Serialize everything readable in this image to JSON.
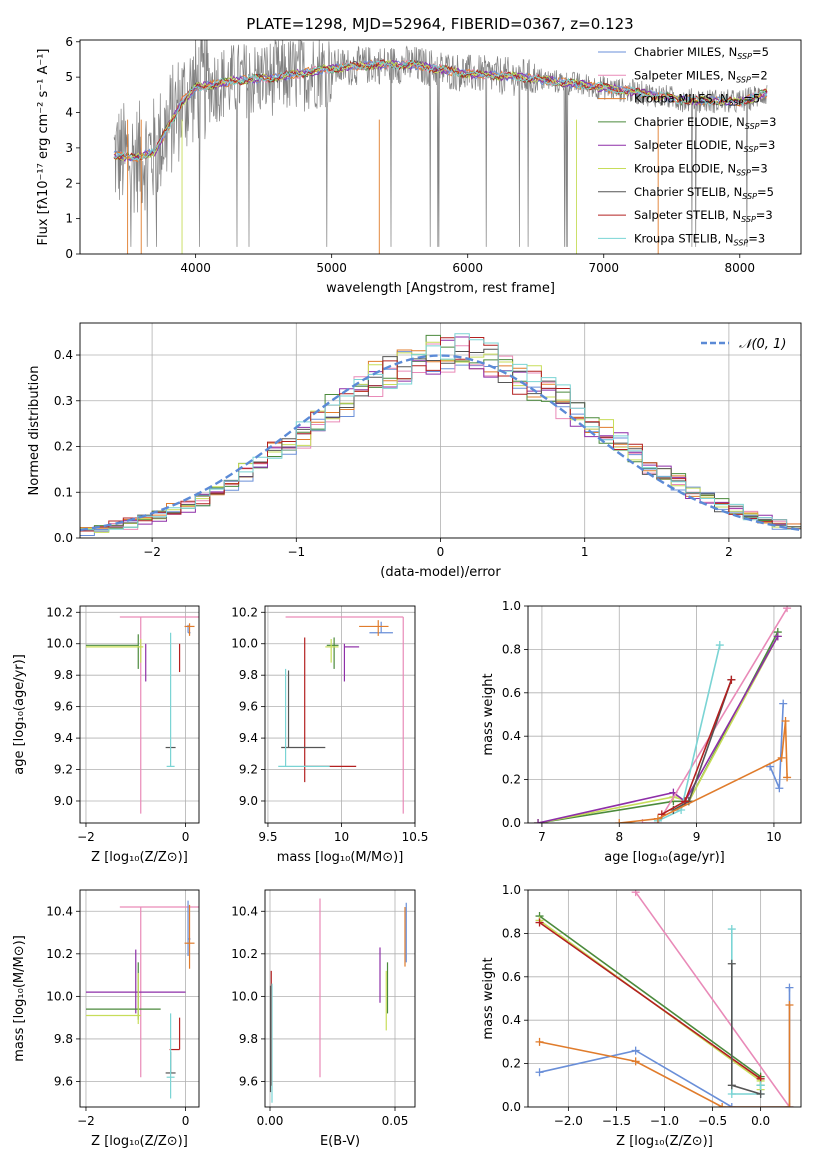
{
  "figure_title": "PLATE=1298, MJD=52964, FIBERID=0367, z=0.123",
  "colors": {
    "chabrier_miles": "#6a8fd8",
    "salpeter_miles": "#e98ab8",
    "kroupa_miles": "#e07c2c",
    "chabrier_elodie": "#4b8a3c",
    "salpeter_elodie": "#8e2fa8",
    "kroupa_elodie": "#c7dd5a",
    "chabrier_stelib": "#555555",
    "salpeter_stelib": "#b32020",
    "kroupa_stelib": "#7ad4d4",
    "normal_curve": "#5b8ad6"
  },
  "chart_data": [
    {
      "id": "spectrum",
      "type": "line",
      "title": "PLATE=1298, MJD=52964, FIBERID=0367, z=0.123",
      "xlabel": "wavelength [Angstrom, rest frame]",
      "ylabel": "Flux [fλ10⁻¹⁷ erg cm⁻² s⁻¹ A⁻¹]",
      "xlim": [
        3150,
        8450
      ],
      "ylim": [
        0,
        6.05
      ],
      "xticks": [
        4000,
        5000,
        6000,
        7000,
        8000
      ],
      "yticks": [
        0,
        1,
        2,
        3,
        4,
        5,
        6
      ],
      "legend_position": "right",
      "legend": [
        "Chabrier MILES, Nₛₛₚ=5",
        "Salpeter MILES, Nₛₛₚ=2",
        "Kroupa MILES, Nₛₛₚ=5",
        "Chabrier ELODIE, Nₛₛₚ=3",
        "Salpeter ELODIE, Nₛₛₚ=3",
        "Kroupa ELODIE, Nₛₛₚ=3",
        "Chabrier STELIB, Nₛₛₚ=5",
        "Salpeter STELIB, Nₛₛₚ=3",
        "Kroupa STELIB, Nₛₛₚ=3"
      ],
      "continuum": {
        "x": [
          3400,
          3550,
          3700,
          3800,
          3900,
          4000,
          4300,
          4600,
          5000,
          5300,
          5600,
          6000,
          6400,
          6800,
          7200,
          7600,
          8000,
          8200
        ],
        "y": [
          2.8,
          2.7,
          2.9,
          3.6,
          4.3,
          4.7,
          4.9,
          5.0,
          5.25,
          5.35,
          5.35,
          5.1,
          5.0,
          4.8,
          4.6,
          4.35,
          4.3,
          4.55
        ]
      }
    },
    {
      "id": "residuals",
      "type": "histogram",
      "xlabel": "(data-model)/error",
      "ylabel": "Normed distribution",
      "xlim": [
        -2.5,
        2.5
      ],
      "ylim": [
        0,
        0.47
      ],
      "xticks": [
        -2,
        -1,
        0,
        1,
        2
      ],
      "yticks": [
        0.0,
        0.1,
        0.2,
        0.3,
        0.4
      ],
      "legend_position": "upper right",
      "legend": [
        "𝒩(0, 1)"
      ],
      "bin_width": 0.1,
      "normal": {
        "mean": 0,
        "sigma": 1
      }
    },
    {
      "id": "age_vs_Z",
      "type": "errorbar",
      "xlabel": "Z [log₁₀(Z/Z⊙)]",
      "ylabel": "age  [log₁₀(age/yr)]",
      "xlim": [
        -2.12,
        0.27
      ],
      "ylim": [
        8.86,
        10.24
      ],
      "xticks": [
        -2,
        0
      ],
      "yticks": [
        9.0,
        9.2,
        9.4,
        9.6,
        9.8,
        10.0,
        10.2
      ],
      "points": [
        {
          "model": "salpeter_miles",
          "x": -0.9,
          "xerr": [
            0.42,
            1.2
          ],
          "y": 10.17,
          "yerr": [
            1.25,
            0.0
          ]
        },
        {
          "model": "chabrier_miles",
          "x": 0.05,
          "xerr": [
            0.0,
            0.05
          ],
          "y": 10.07,
          "yerr": [
            0.0,
            0.05
          ]
        },
        {
          "model": "kroupa_miles",
          "x": 0.08,
          "xerr": [
            0.1,
            0.1
          ],
          "y": 10.11,
          "yerr": [
            0.06,
            0.02
          ]
        },
        {
          "model": "chabrier_elodie",
          "x": -0.95,
          "xerr": [
            1.05,
            0.0
          ],
          "y": 9.99,
          "yerr": [
            0.15,
            0.07
          ]
        },
        {
          "model": "kroupa_elodie",
          "x": -0.9,
          "xerr": [
            1.1,
            0.05
          ],
          "y": 9.98,
          "yerr": [
            0.1,
            0.05
          ]
        },
        {
          "model": "salpeter_elodie",
          "x": -0.8,
          "xerr": [
            0.0,
            0.0
          ],
          "y": 9.98,
          "yerr": [
            0.22,
            0.02
          ]
        },
        {
          "model": "salpeter_stelib",
          "x": -0.12,
          "xerr": [
            0.0,
            0.0
          ],
          "y": 9.97,
          "yerr": [
            0.15,
            0.03
          ]
        },
        {
          "model": "chabrier_stelib",
          "x": -0.3,
          "xerr": [
            0.1,
            0.1
          ],
          "y": 9.34,
          "yerr": [
            0.0,
            0.0
          ]
        },
        {
          "model": "kroupa_stelib",
          "x": -0.3,
          "xerr": [
            0.08,
            0.08
          ],
          "y": 9.22,
          "yerr": [
            0.0,
            0.85
          ]
        }
      ]
    },
    {
      "id": "age_vs_mass",
      "type": "errorbar",
      "xlabel": "mass [log₁₀(M/M⊙)]",
      "ylabel": "",
      "xlim": [
        9.48,
        10.5
      ],
      "ylim": [
        8.86,
        10.24
      ],
      "xticks": [
        9.5,
        10.0,
        10.5
      ],
      "yticks": [
        9.0,
        9.2,
        9.4,
        9.6,
        9.8,
        10.0,
        10.2
      ],
      "points": [
        {
          "model": "salpeter_miles",
          "x": 10.42,
          "xerr": [
            0.8,
            0.0
          ],
          "y": 10.17,
          "yerr": [
            1.25,
            0.0
          ]
        },
        {
          "model": "chabrier_miles",
          "x": 10.27,
          "xerr": [
            0.08,
            0.08
          ],
          "y": 10.07,
          "yerr": [
            0.0,
            0.07
          ]
        },
        {
          "model": "kroupa_miles",
          "x": 10.25,
          "xerr": [
            0.13,
            0.07
          ],
          "y": 10.11,
          "yerr": [
            0.06,
            0.04
          ]
        },
        {
          "model": "chabrier_elodie",
          "x": 9.95,
          "xerr": [
            0.05,
            0.03
          ],
          "y": 9.99,
          "yerr": [
            0.15,
            0.05
          ]
        },
        {
          "model": "kroupa_elodie",
          "x": 9.93,
          "xerr": [
            0.04,
            0.05
          ],
          "y": 9.98,
          "yerr": [
            0.1,
            0.05
          ]
        },
        {
          "model": "salpeter_elodie",
          "x": 10.02,
          "xerr": [
            0.0,
            0.1
          ],
          "y": 9.98,
          "yerr": [
            0.22,
            0.02
          ]
        },
        {
          "model": "salpeter_stelib",
          "x": 9.75,
          "xerr": [
            0.0,
            0.35
          ],
          "y": 9.22,
          "yerr": [
            0.1,
            0.82
          ]
        },
        {
          "model": "chabrier_stelib",
          "x": 9.64,
          "xerr": [
            0.05,
            0.25
          ],
          "y": 9.34,
          "yerr": [
            0.0,
            0.49
          ]
        },
        {
          "model": "kroupa_stelib",
          "x": 9.62,
          "xerr": [
            0.05,
            0.3
          ],
          "y": 9.22,
          "yerr": [
            0.0,
            0.62
          ]
        }
      ]
    },
    {
      "id": "mass_weight_vs_age",
      "type": "line",
      "xlabel": "age  [log₁₀(age/yr)]",
      "ylabel": "mass weight",
      "xlim": [
        6.82,
        10.35
      ],
      "ylim": [
        0,
        1.0
      ],
      "xticks": [
        7,
        8,
        9,
        10
      ],
      "yticks": [
        0.0,
        0.2,
        0.4,
        0.6,
        0.8,
        1.0
      ],
      "series": [
        {
          "model": "chabrier_elodie",
          "x": [
            6.95,
            8.7,
            8.9,
            10.05
          ],
          "y": [
            0.0,
            0.1,
            0.1,
            0.88
          ]
        },
        {
          "model": "kroupa_elodie",
          "x": [
            6.95,
            8.7,
            8.9,
            10.05
          ],
          "y": [
            0.0,
            0.12,
            0.1,
            0.86
          ]
        },
        {
          "model": "salpeter_elodie",
          "x": [
            6.95,
            8.7,
            8.85,
            10.05
          ],
          "y": [
            0.0,
            0.14,
            0.1,
            0.86
          ]
        },
        {
          "model": "salpeter_miles",
          "x": [
            8.3,
            8.5,
            10.17
          ],
          "y": [
            0.0,
            0.0,
            0.99
          ]
        },
        {
          "model": "kroupa_stelib",
          "x": [
            8.5,
            8.8,
            9.3
          ],
          "y": [
            0.01,
            0.06,
            0.82
          ]
        },
        {
          "model": "chabrier_stelib",
          "x": [
            8.7,
            8.9,
            9.45
          ],
          "y": [
            0.06,
            0.1,
            0.66
          ]
        },
        {
          "model": "salpeter_stelib",
          "x": [
            8.55,
            8.85,
            9.45
          ],
          "y": [
            0.04,
            0.1,
            0.66
          ]
        },
        {
          "model": "chabrier_miles",
          "x": [
            9.95,
            10.07,
            10.12
          ],
          "y": [
            0.26,
            0.16,
            0.55
          ]
        },
        {
          "model": "kroupa_miles",
          "x": [
            8.0,
            8.5,
            10.1,
            10.15,
            10.17
          ],
          "y": [
            0.0,
            0.02,
            0.3,
            0.47,
            0.21
          ]
        }
      ]
    },
    {
      "id": "mass_vs_Z",
      "type": "errorbar",
      "xlabel": "Z [log₁₀(Z/Z⊙)]",
      "ylabel": "mass [log₁₀(M/M⊙)]",
      "xlim": [
        -2.12,
        0.27
      ],
      "ylim": [
        9.48,
        10.5
      ],
      "xticks": [
        -2,
        0
      ],
      "yticks": [
        9.6,
        9.8,
        10.0,
        10.2,
        10.4
      ],
      "points": [
        {
          "model": "salpeter_miles",
          "x": -0.9,
          "xerr": [
            0.42,
            1.2
          ],
          "y": 10.42,
          "yerr": [
            0.8,
            0.0
          ]
        },
        {
          "model": "chabrier_miles",
          "x": 0.05,
          "xerr": [
            0.0,
            0.05
          ],
          "y": 10.27,
          "yerr": [
            0.08,
            0.18
          ]
        },
        {
          "model": "kroupa_miles",
          "x": 0.08,
          "xerr": [
            0.1,
            0.1
          ],
          "y": 10.25,
          "yerr": [
            0.12,
            0.18
          ]
        },
        {
          "model": "salpeter_elodie",
          "x": -1.0,
          "xerr": [
            1.0,
            1.0
          ],
          "y": 10.02,
          "yerr": [
            0.1,
            0.2
          ]
        },
        {
          "model": "chabrier_elodie",
          "x": -0.95,
          "xerr": [
            1.05,
            0.45
          ],
          "y": 9.94,
          "yerr": [
            0.05,
            0.22
          ]
        },
        {
          "model": "kroupa_elodie",
          "x": -0.95,
          "xerr": [
            1.05,
            0.05
          ],
          "y": 9.91,
          "yerr": [
            0.04,
            0.2
          ]
        },
        {
          "model": "salpeter_stelib",
          "x": -0.12,
          "xerr": [
            0.2,
            0.0
          ],
          "y": 9.75,
          "yerr": [
            0.0,
            0.15
          ]
        },
        {
          "model": "chabrier_stelib",
          "x": -0.3,
          "xerr": [
            0.1,
            0.1
          ],
          "y": 9.64,
          "yerr": [
            0.0,
            0.1
          ]
        },
        {
          "model": "kroupa_stelib",
          "x": -0.3,
          "xerr": [
            0.08,
            0.08
          ],
          "y": 9.62,
          "yerr": [
            0.1,
            0.3
          ]
        }
      ]
    },
    {
      "id": "mass_vs_ebv",
      "type": "errorbar",
      "xlabel": "E(B-V)",
      "ylabel": "",
      "xlim": [
        -0.002,
        0.058
      ],
      "ylim": [
        9.48,
        10.5
      ],
      "xticks": [
        0.0,
        0.05
      ],
      "xticklabels": [
        "0.00",
        "0.05"
      ],
      "yticks": [
        9.6,
        9.8,
        10.0,
        10.2,
        10.4
      ],
      "points": [
        {
          "model": "salpeter_miles",
          "x": 0.02,
          "xerr": [
            0,
            0
          ],
          "y": 10.04,
          "yerr": [
            0.42,
            0.42
          ]
        },
        {
          "model": "kroupa_miles",
          "x": 0.054,
          "xerr": [
            0,
            0
          ],
          "y": 10.28,
          "yerr": [
            0.14,
            0.14
          ]
        },
        {
          "model": "chabrier_miles",
          "x": 0.0545,
          "xerr": [
            0,
            0
          ],
          "y": 10.3,
          "yerr": [
            0.14,
            0.14
          ]
        },
        {
          "model": "salpeter_elodie",
          "x": 0.044,
          "xerr": [
            0,
            0
          ],
          "y": 10.1,
          "yerr": [
            0.13,
            0.13
          ]
        },
        {
          "model": "chabrier_elodie",
          "x": 0.047,
          "xerr": [
            0,
            0
          ],
          "y": 10.04,
          "yerr": [
            0.12,
            0.12
          ]
        },
        {
          "model": "kroupa_elodie",
          "x": 0.0465,
          "xerr": [
            0,
            0
          ],
          "y": 9.98,
          "yerr": [
            0.14,
            0.14
          ]
        },
        {
          "model": "salpeter_stelib",
          "x": 0.0005,
          "xerr": [
            0,
            0
          ],
          "y": 9.85,
          "yerr": [
            0.27,
            0.27
          ]
        },
        {
          "model": "chabrier_stelib",
          "x": 0.0002,
          "xerr": [
            0,
            0
          ],
          "y": 9.8,
          "yerr": [
            0.25,
            0.25
          ]
        },
        {
          "model": "kroupa_stelib",
          "x": 0.0008,
          "xerr": [
            0,
            0
          ],
          "y": 9.78,
          "yerr": [
            0.28,
            0.28
          ]
        }
      ]
    },
    {
      "id": "mass_weight_vs_Z",
      "type": "line",
      "xlabel": "Z [log₁₀(Z/Z⊙)]",
      "ylabel": "mass weight",
      "xlim": [
        -2.42,
        0.42
      ],
      "ylim": [
        0,
        1.0
      ],
      "xticks": [
        -2.0,
        -1.5,
        -1.0,
        -0.5,
        0.0
      ],
      "xticklabels": [
        "−2.0",
        "−1.5",
        "−1.0",
        "−0.5",
        "0.0"
      ],
      "yticks": [
        0.0,
        0.2,
        0.4,
        0.6,
        0.8,
        1.0
      ],
      "series": [
        {
          "model": "salpeter_miles",
          "x": [
            -1.3,
            0.3
          ],
          "y": [
            0.99,
            0.0
          ]
        },
        {
          "model": "chabrier_elodie",
          "x": [
            -2.3,
            0.0,
            0.0
          ],
          "y": [
            0.88,
            0.14,
            0.1
          ]
        },
        {
          "model": "kroupa_elodie",
          "x": [
            -2.3,
            0.0,
            0.0
          ],
          "y": [
            0.86,
            0.12,
            0.08
          ]
        },
        {
          "model": "salpeter_stelib",
          "x": [
            -2.3,
            0.0
          ],
          "y": [
            0.85,
            0.13
          ]
        },
        {
          "model": "kroupa_stelib",
          "x": [
            -0.3,
            -0.3,
            0.0,
            0.0
          ],
          "y": [
            0.82,
            0.06,
            0.06,
            0.1
          ]
        },
        {
          "model": "chabrier_stelib",
          "x": [
            -0.3,
            -0.3,
            0.0
          ],
          "y": [
            0.66,
            0.1,
            0.06
          ]
        },
        {
          "model": "chabrier_miles",
          "x": [
            -2.3,
            -1.3,
            -0.3,
            0.3,
            0.3
          ],
          "y": [
            0.16,
            0.26,
            0.0,
            0.0,
            0.55
          ]
        },
        {
          "model": "kroupa_miles",
          "x": [
            -2.3,
            -1.3,
            -0.4,
            0.3,
            0.3
          ],
          "y": [
            0.3,
            0.21,
            0.0,
            0.0,
            0.47
          ]
        }
      ]
    }
  ]
}
